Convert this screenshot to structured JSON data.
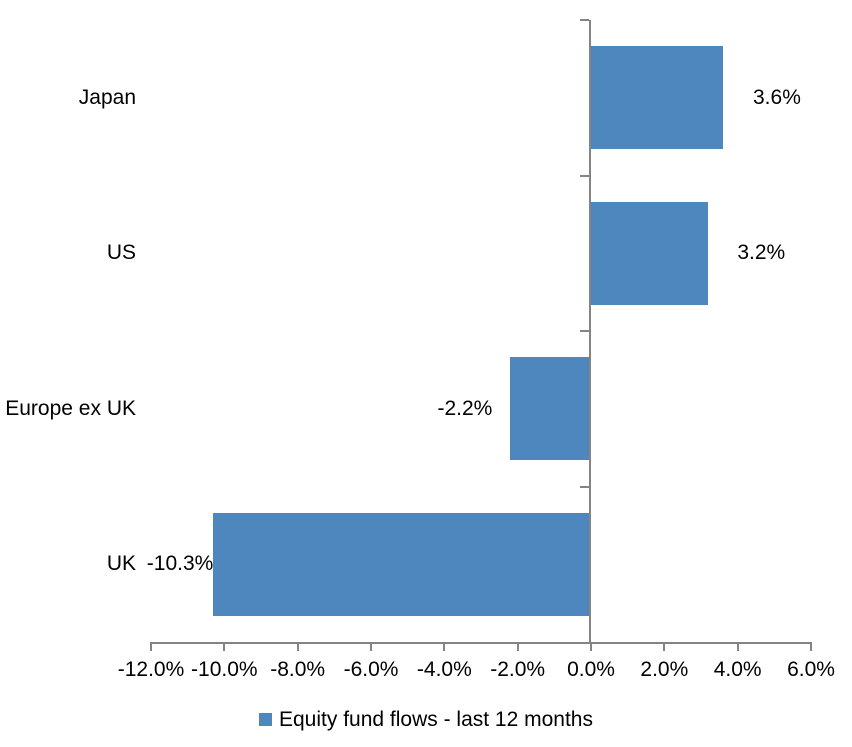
{
  "chart_data": {
    "type": "bar",
    "orientation": "horizontal",
    "title": "",
    "categories": [
      "Japan",
      "US",
      "Europe ex UK",
      "UK"
    ],
    "values": [
      3.6,
      3.2,
      -2.2,
      -10.3
    ],
    "data_labels": [
      "3.6%",
      "3.2%",
      "-2.2%",
      "-10.3%"
    ],
    "series": [
      {
        "name": "Equity fund flows - last 12 months",
        "values": [
          3.6,
          3.2,
          -2.2,
          -10.3
        ]
      }
    ],
    "x_axis": {
      "min": -12,
      "max": 6,
      "step": 2,
      "tick_labels": [
        "-12.0%",
        "-10.0%",
        "-8.0%",
        "-6.0%",
        "-4.0%",
        "-2.0%",
        "0.0%",
        "2.0%",
        "4.0%",
        "6.0%"
      ]
    },
    "y_axis": {
      "tick_labels": [
        "Japan",
        "US",
        "Europe ex UK",
        "UK"
      ]
    },
    "legend": {
      "position": "bottom-center",
      "label": "Equity fund flows - last 12 months"
    },
    "grid": "off",
    "colors": {
      "bar": "#4E86BE",
      "axis": "#848484",
      "text": "#000000",
      "background": "#FFFFFF"
    }
  }
}
